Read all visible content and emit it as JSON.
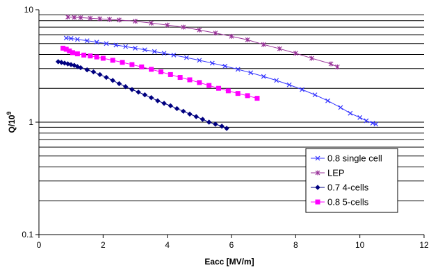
{
  "chart_data": {
    "type": "scatter",
    "xlabel": "Eacc [MV/m]",
    "ylabel": "Q/10",
    "ylabel_superscript": "9",
    "xlim": [
      0,
      12
    ],
    "ylim": [
      0.1,
      10
    ],
    "ylog": true,
    "x_ticks": [
      0,
      2,
      4,
      6,
      8,
      10,
      12
    ],
    "x_tick_labels": [
      "0",
      "2",
      "4",
      "6",
      "8",
      "10",
      "12"
    ],
    "y_major_ticks": [
      0.1,
      1,
      10
    ],
    "y_tick_labels": [
      "0.1",
      "1",
      "10"
    ],
    "grid": "horizontal minor and major lines",
    "legend_position": "lower-right",
    "series": [
      {
        "name": "0.8 single cell",
        "color": "#3333ff",
        "marker": "x",
        "x": [
          0.85,
          1.0,
          1.2,
          1.5,
          1.8,
          2.1,
          2.4,
          2.7,
          3.0,
          3.3,
          3.6,
          3.9,
          4.2,
          4.6,
          5.0,
          5.4,
          5.8,
          6.2,
          6.6,
          7.0,
          7.4,
          7.8,
          8.2,
          8.6,
          9.0,
          9.4,
          9.7,
          10.0,
          10.2,
          10.4,
          10.5
        ],
        "y": [
          5.6,
          5.55,
          5.45,
          5.3,
          5.15,
          5.0,
          4.85,
          4.7,
          4.55,
          4.4,
          4.25,
          4.1,
          3.95,
          3.75,
          3.55,
          3.35,
          3.15,
          2.95,
          2.75,
          2.55,
          2.35,
          2.15,
          1.95,
          1.75,
          1.55,
          1.35,
          1.2,
          1.1,
          1.03,
          0.98,
          0.96
        ]
      },
      {
        "name": "LEP",
        "color": "#993399",
        "marker": "asterisk",
        "x": [
          0.9,
          1.1,
          1.3,
          1.6,
          1.9,
          2.2,
          2.5,
          3.0,
          3.5,
          4.0,
          4.5,
          5.0,
          5.5,
          6.0,
          6.5,
          7.0,
          7.5,
          8.0,
          8.5,
          9.1,
          9.3
        ],
        "y": [
          8.6,
          8.55,
          8.5,
          8.4,
          8.3,
          8.2,
          8.1,
          7.9,
          7.6,
          7.3,
          7.0,
          6.6,
          6.2,
          5.8,
          5.4,
          4.9,
          4.5,
          4.1,
          3.7,
          3.3,
          3.1
        ]
      },
      {
        "name": "0.7 4-cells",
        "color": "#000080",
        "marker": "diamond",
        "x": [
          0.6,
          0.7,
          0.8,
          0.9,
          1.0,
          1.1,
          1.2,
          1.3,
          1.5,
          1.7,
          1.9,
          2.1,
          2.3,
          2.5,
          2.7,
          2.9,
          3.1,
          3.3,
          3.5,
          3.7,
          3.9,
          4.1,
          4.3,
          4.5,
          4.7,
          4.9,
          5.1,
          5.3,
          5.5,
          5.7,
          5.85
        ],
        "y": [
          3.45,
          3.4,
          3.35,
          3.3,
          3.25,
          3.2,
          3.12,
          3.05,
          2.92,
          2.8,
          2.65,
          2.5,
          2.35,
          2.2,
          2.07,
          1.95,
          1.85,
          1.75,
          1.65,
          1.55,
          1.47,
          1.4,
          1.32,
          1.25,
          1.18,
          1.12,
          1.06,
          1.0,
          0.96,
          0.92,
          0.88
        ]
      },
      {
        "name": "0.8 5-cells",
        "color": "#ff00ff",
        "marker": "square",
        "x": [
          0.75,
          0.85,
          0.95,
          1.05,
          1.2,
          1.4,
          1.6,
          1.8,
          2.0,
          2.3,
          2.6,
          2.9,
          3.2,
          3.5,
          3.8,
          4.1,
          4.4,
          4.7,
          5.0,
          5.3,
          5.6,
          5.9,
          6.2,
          6.5,
          6.8
        ],
        "y": [
          4.55,
          4.45,
          4.3,
          4.15,
          4.05,
          3.95,
          3.88,
          3.8,
          3.7,
          3.55,
          3.4,
          3.25,
          3.1,
          2.95,
          2.8,
          2.65,
          2.5,
          2.38,
          2.25,
          2.12,
          2.0,
          1.9,
          1.8,
          1.72,
          1.63
        ]
      }
    ]
  }
}
